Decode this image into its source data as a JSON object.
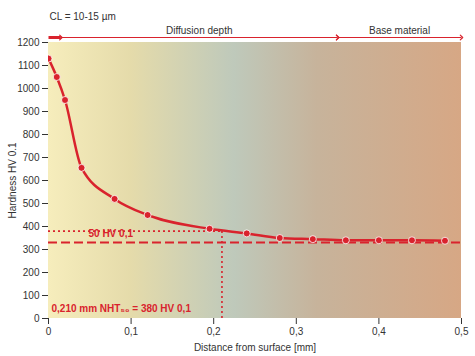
{
  "chart_data": {
    "type": "line",
    "x_label": "Distance from surface [mm]",
    "y_label": "Hardness HV 0.1",
    "xlim": [
      0,
      0.5
    ],
    "xticks": [
      0,
      {
        "value": 0.1,
        "label": "0,1"
      },
      {
        "value": 0.2,
        "label": "0,2"
      },
      {
        "value": 0.3,
        "label": "0,3"
      },
      {
        "value": 0.4,
        "label": "0,4"
      },
      {
        "value": 0.5,
        "label": "0,5"
      }
    ],
    "ylim": [
      0,
      1200
    ],
    "yticks": [
      0,
      100,
      200,
      300,
      400,
      500,
      600,
      700,
      800,
      900,
      1000,
      1100,
      1200
    ],
    "grid": false,
    "color": "#d9232d",
    "marker": "circle",
    "x": [
      0,
      0.01,
      0.02,
      0.04,
      0.08,
      0.12,
      0.195,
      0.24,
      0.28,
      0.32,
      0.36,
      0.4,
      0.44,
      0.48
    ],
    "values": [
      1130,
      1050,
      950,
      655,
      520,
      450,
      390,
      370,
      350,
      345,
      340,
      340,
      340,
      338
    ],
    "regions": [
      {
        "label": "CL = 10-15 µm",
        "start": 0,
        "end": 0.015
      },
      {
        "label": "Diffusion depth",
        "start": 0.015,
        "end": 0.35
      },
      {
        "label": "Base material",
        "start": 0.35,
        "end": 0.5
      }
    ],
    "reference_lines": [
      {
        "label": "0,210 mm NHT₅₀ = 380 HV 0,1",
        "x": 0.21,
        "y": 380,
        "line_style": "dotted"
      },
      {
        "label": "50 HV 0,1",
        "y": 330,
        "line_style": "dashed"
      }
    ]
  }
}
